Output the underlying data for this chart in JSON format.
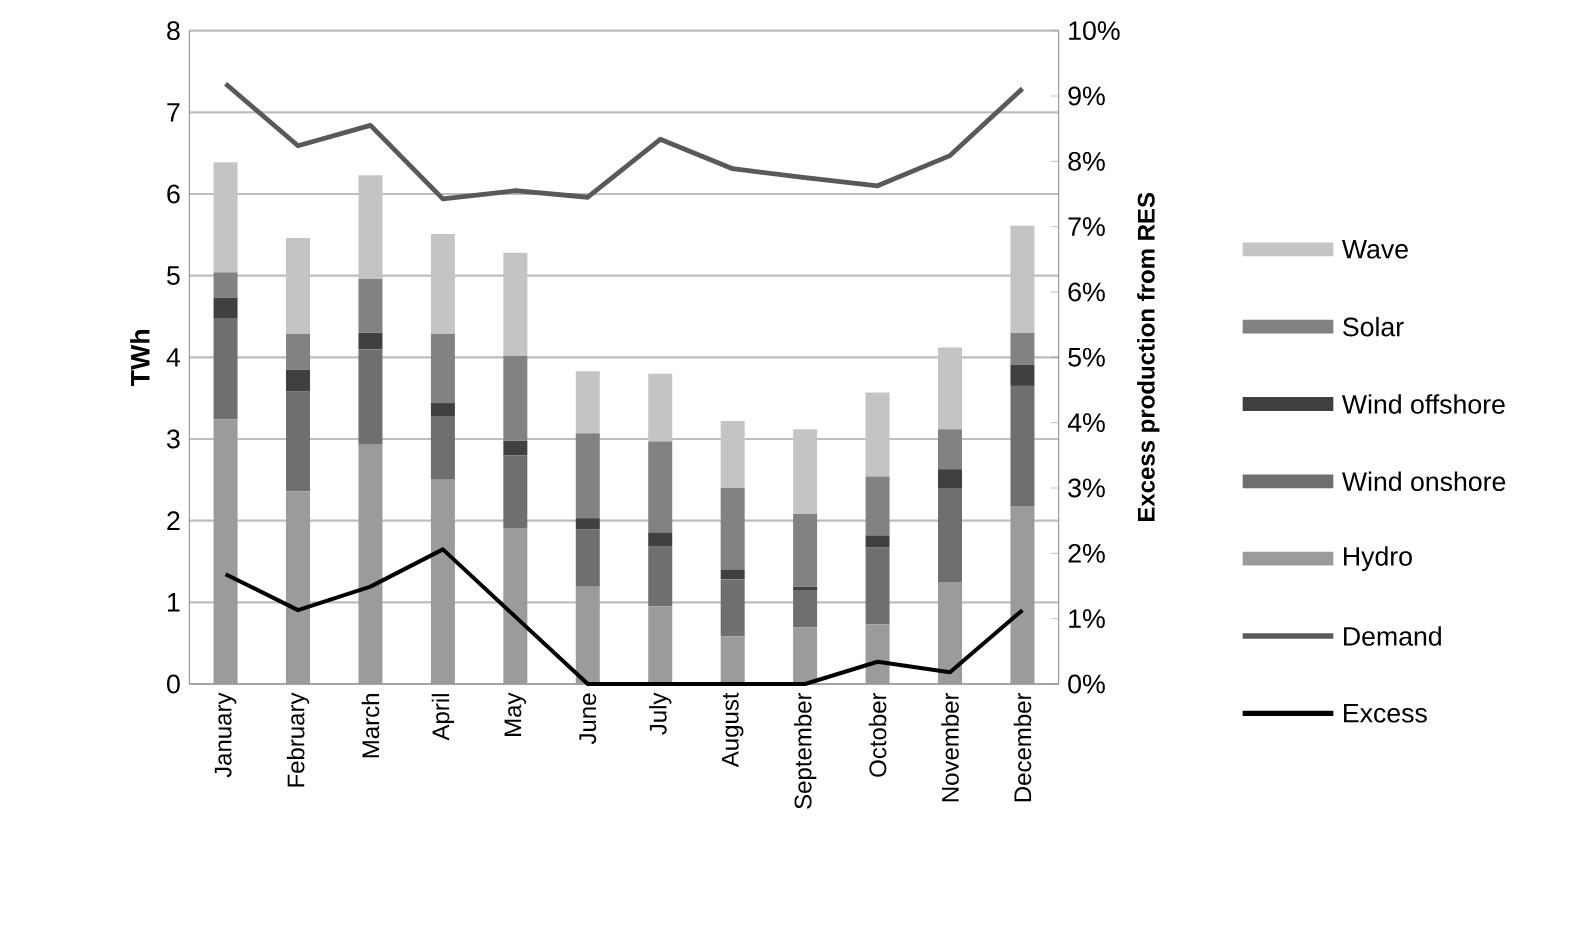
{
  "chart_data": {
    "type": "bar",
    "stacked": true,
    "ylabel": "TWh",
    "y2label": "Excess production from RES",
    "categories": [
      "January",
      "February",
      "March",
      "April",
      "May",
      "June",
      "July",
      "August",
      "September",
      "October",
      "November",
      "December"
    ],
    "series": [
      {
        "name": "Hydro",
        "color": "#9b9b9b",
        "values": [
          3.24,
          2.36,
          2.93,
          2.5,
          1.91,
          1.19,
          0.95,
          0.58,
          0.69,
          0.73,
          1.25,
          2.18
        ]
      },
      {
        "name": "Wind onshore",
        "color": "#6f6f6f",
        "values": [
          1.24,
          1.22,
          1.17,
          0.78,
          0.89,
          0.7,
          0.74,
          0.7,
          0.46,
          0.94,
          1.15,
          1.47
        ]
      },
      {
        "name": "Wind offshore",
        "color": "#404040",
        "values": [
          0.25,
          0.27,
          0.2,
          0.16,
          0.18,
          0.14,
          0.16,
          0.12,
          0.04,
          0.15,
          0.23,
          0.26
        ]
      },
      {
        "name": "Solar",
        "color": "#828282",
        "values": [
          0.31,
          0.44,
          0.66,
          0.85,
          1.04,
          1.04,
          1.12,
          1.0,
          0.89,
          0.72,
          0.49,
          0.39
        ]
      },
      {
        "name": "Wave",
        "color": "#c4c4c4",
        "values": [
          1.35,
          1.17,
          1.27,
          1.22,
          1.26,
          0.76,
          0.83,
          0.82,
          1.04,
          1.03,
          1.0,
          1.31
        ]
      },
      {
        "name": "Demand",
        "type": "line",
        "color": "#595959",
        "values": [
          7.35,
          6.59,
          6.84,
          5.94,
          6.04,
          5.96,
          6.67,
          6.31,
          6.2,
          6.1,
          6.47,
          7.29
        ]
      },
      {
        "name": "Excess",
        "type": "line",
        "axis": "y2",
        "color": "#000000",
        "values": [
          1.68,
          1.13,
          1.49,
          2.06,
          1.03,
          0,
          0,
          0,
          0,
          0.34,
          0.18,
          1.13
        ]
      }
    ],
    "ylim": [
      0,
      8
    ],
    "yticks": [
      0,
      1,
      2,
      3,
      4,
      5,
      6,
      7,
      8
    ],
    "y2lim": [
      0,
      10
    ],
    "y2ticks": [
      {
        "value": 0,
        "label": "0%"
      },
      {
        "value": 1,
        "label": "1%"
      },
      {
        "value": 2,
        "label": "2%"
      },
      {
        "value": 3,
        "label": "3%"
      },
      {
        "value": 4,
        "label": "4%"
      },
      {
        "value": 5,
        "label": "5%"
      },
      {
        "value": 6,
        "label": "6%"
      },
      {
        "value": 7,
        "label": "7%"
      },
      {
        "value": 8,
        "label": "8%"
      },
      {
        "value": 9,
        "label": "9%"
      },
      {
        "value": 10,
        "label": "10%"
      }
    ],
    "grid": "y",
    "legend": "right"
  }
}
